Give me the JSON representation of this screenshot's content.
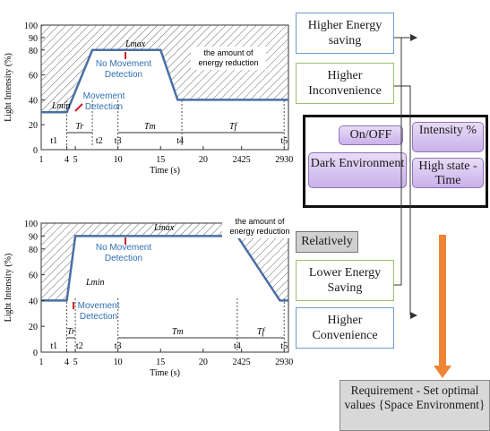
{
  "chart_data": [
    {
      "type": "line",
      "ylabel": "Light Intensity (%)",
      "xlabel": "Time (s)",
      "x_ticks": [
        "1",
        "4",
        "5",
        "10",
        "15",
        "20",
        "2425",
        "2930"
      ],
      "y_ticks": [
        "0",
        "20",
        "40",
        "60",
        "80",
        "90",
        "100"
      ],
      "phase_labels": [
        "t1",
        "t2",
        "t3",
        "t4",
        "t5"
      ],
      "interval_labels": [
        "Tr",
        "Tm",
        "Tf"
      ],
      "series": [
        {
          "points": [
            [
              1,
              30
            ],
            [
              4,
              30
            ],
            [
              7,
              80
            ],
            [
              15,
              80
            ],
            [
              17,
              40
            ],
            [
              30,
              40
            ]
          ]
        }
      ],
      "annotations": {
        "lmin": "Lmin",
        "lmax": "Lmax",
        "no_movement": "No Movement Detection",
        "movement": "Movement Detection",
        "reduction": "the amount of energy reduction"
      }
    },
    {
      "type": "line",
      "ylabel": "Light Intensity (%)",
      "xlabel": "Time (s)",
      "x_ticks": [
        "1",
        "4",
        "5",
        "10",
        "15",
        "20",
        "2425",
        "2930"
      ],
      "y_ticks": [
        "0",
        "20",
        "40",
        "60",
        "80",
        "90",
        "100"
      ],
      "phase_labels": [
        "t1",
        "t2",
        "t3",
        "t4",
        "t5"
      ],
      "interval_labels": [
        "Tr",
        "Tm",
        "Tf"
      ],
      "series": [
        {
          "points": [
            [
              1,
              40
            ],
            [
              4,
              40
            ],
            [
              5,
              90
            ],
            [
              24,
              90
            ],
            [
              29,
              40
            ],
            [
              30,
              40
            ]
          ]
        }
      ],
      "annotations": {
        "lmin": "Lmin",
        "lmax": "Lmax",
        "no_movement": "No Movement Detection",
        "movement": "Movement Detection",
        "reduction": "the amount of energy reduction"
      }
    }
  ],
  "boxes": {
    "higher_energy_saving": "Higher Energy saving",
    "higher_inconvenience": "Higher Inconvenience",
    "relatively": "Relatively",
    "lower_energy_saving": "Lower Energy Saving",
    "higher_convenience": "Higher Convenience"
  },
  "factors": {
    "on_off": "On/OFF",
    "intensity": "Intensity %",
    "dark_environment": "Dark Environment",
    "high_state_time": "High state - Time"
  },
  "requirement": "Requirement - Set optimal values {Space Environment}",
  "colors": {
    "series": "#4a6fa5",
    "annotation": "#2f6fb5",
    "arrow": "#ee8434",
    "marker": "#cc2222"
  }
}
